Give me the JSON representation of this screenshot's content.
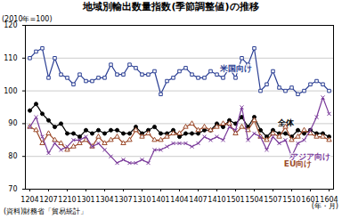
{
  "chart_data": {
    "type": "line",
    "title": "地域別輸出数量指数(季節調整値)の推移",
    "y_label": "(2010年=100)",
    "x_label": "(年・月)",
    "source": "(資料)財務省「貿易統計」",
    "categories": [
      "1204",
      null,
      null,
      "1207",
      null,
      null,
      "1210",
      null,
      null,
      "1301",
      null,
      null,
      "1304",
      null,
      null,
      "1307",
      null,
      null,
      "1310",
      null,
      null,
      "1401",
      null,
      null,
      "1404",
      null,
      null,
      "1407",
      null,
      null,
      "1410",
      null,
      null,
      "1501",
      null,
      null,
      "1504",
      null,
      null,
      "1507",
      null,
      null,
      "1510",
      null,
      null,
      "1601",
      null,
      null,
      "1604"
    ],
    "ylim": [
      70,
      120
    ],
    "yticks": [
      70,
      80,
      90,
      100,
      110,
      120
    ],
    "grid": true,
    "series": [
      {
        "name": "米国向け",
        "color": "#2b3f94",
        "marker": "square",
        "values": [
          110,
          112,
          113,
          104,
          110,
          105,
          104,
          102,
          105,
          103,
          103,
          104,
          104,
          108,
          105,
          105,
          108,
          107,
          105,
          105,
          106,
          99,
          103,
          104,
          106,
          107,
          105,
          104,
          104,
          106,
          105,
          104,
          107,
          104,
          110,
          108,
          113,
          100,
          102,
          106,
          101,
          100,
          101,
          99,
          100,
          102,
          103,
          102,
          100
        ]
      },
      {
        "name": "全体",
        "color": "#000000",
        "marker": "circle",
        "values": [
          94,
          96,
          93,
          91,
          89,
          90,
          87,
          87,
          86,
          88,
          87,
          88,
          87,
          88,
          88,
          87,
          87,
          89,
          87,
          88,
          89,
          87,
          87,
          88,
          86,
          87,
          87,
          87,
          88,
          88,
          90,
          89,
          91,
          90,
          92,
          89,
          92,
          88,
          86,
          88,
          87,
          87,
          86,
          88,
          87,
          88,
          87,
          87,
          86
        ]
      },
      {
        "name": "EU向け",
        "color": "#9c4a2a",
        "marker": "triangle",
        "values": [
          89,
          88,
          84,
          87,
          85,
          84,
          82,
          83,
          84,
          85,
          83,
          86,
          84,
          85,
          86,
          84,
          85,
          88,
          86,
          87,
          85,
          85,
          86,
          87,
          87,
          89,
          90,
          88,
          89,
          88,
          89,
          90,
          90,
          87,
          89,
          88,
          91,
          86,
          85,
          87,
          86,
          89,
          85,
          86,
          88,
          87,
          86,
          86,
          85
        ]
      },
      {
        "name": "アジア向け",
        "color": "#7a3a9a",
        "marker": "times",
        "values": [
          89,
          92,
          86,
          81,
          84,
          82,
          83,
          85,
          85,
          86,
          83,
          84,
          82,
          80,
          78,
          79,
          78,
          78,
          79,
          78,
          82,
          82,
          83,
          84,
          84,
          84,
          83,
          84,
          86,
          85,
          86,
          85,
          89,
          88,
          95,
          85,
          87,
          86,
          82,
          86,
          84,
          85,
          80,
          84,
          85,
          88,
          92,
          98,
          93
        ]
      }
    ]
  }
}
